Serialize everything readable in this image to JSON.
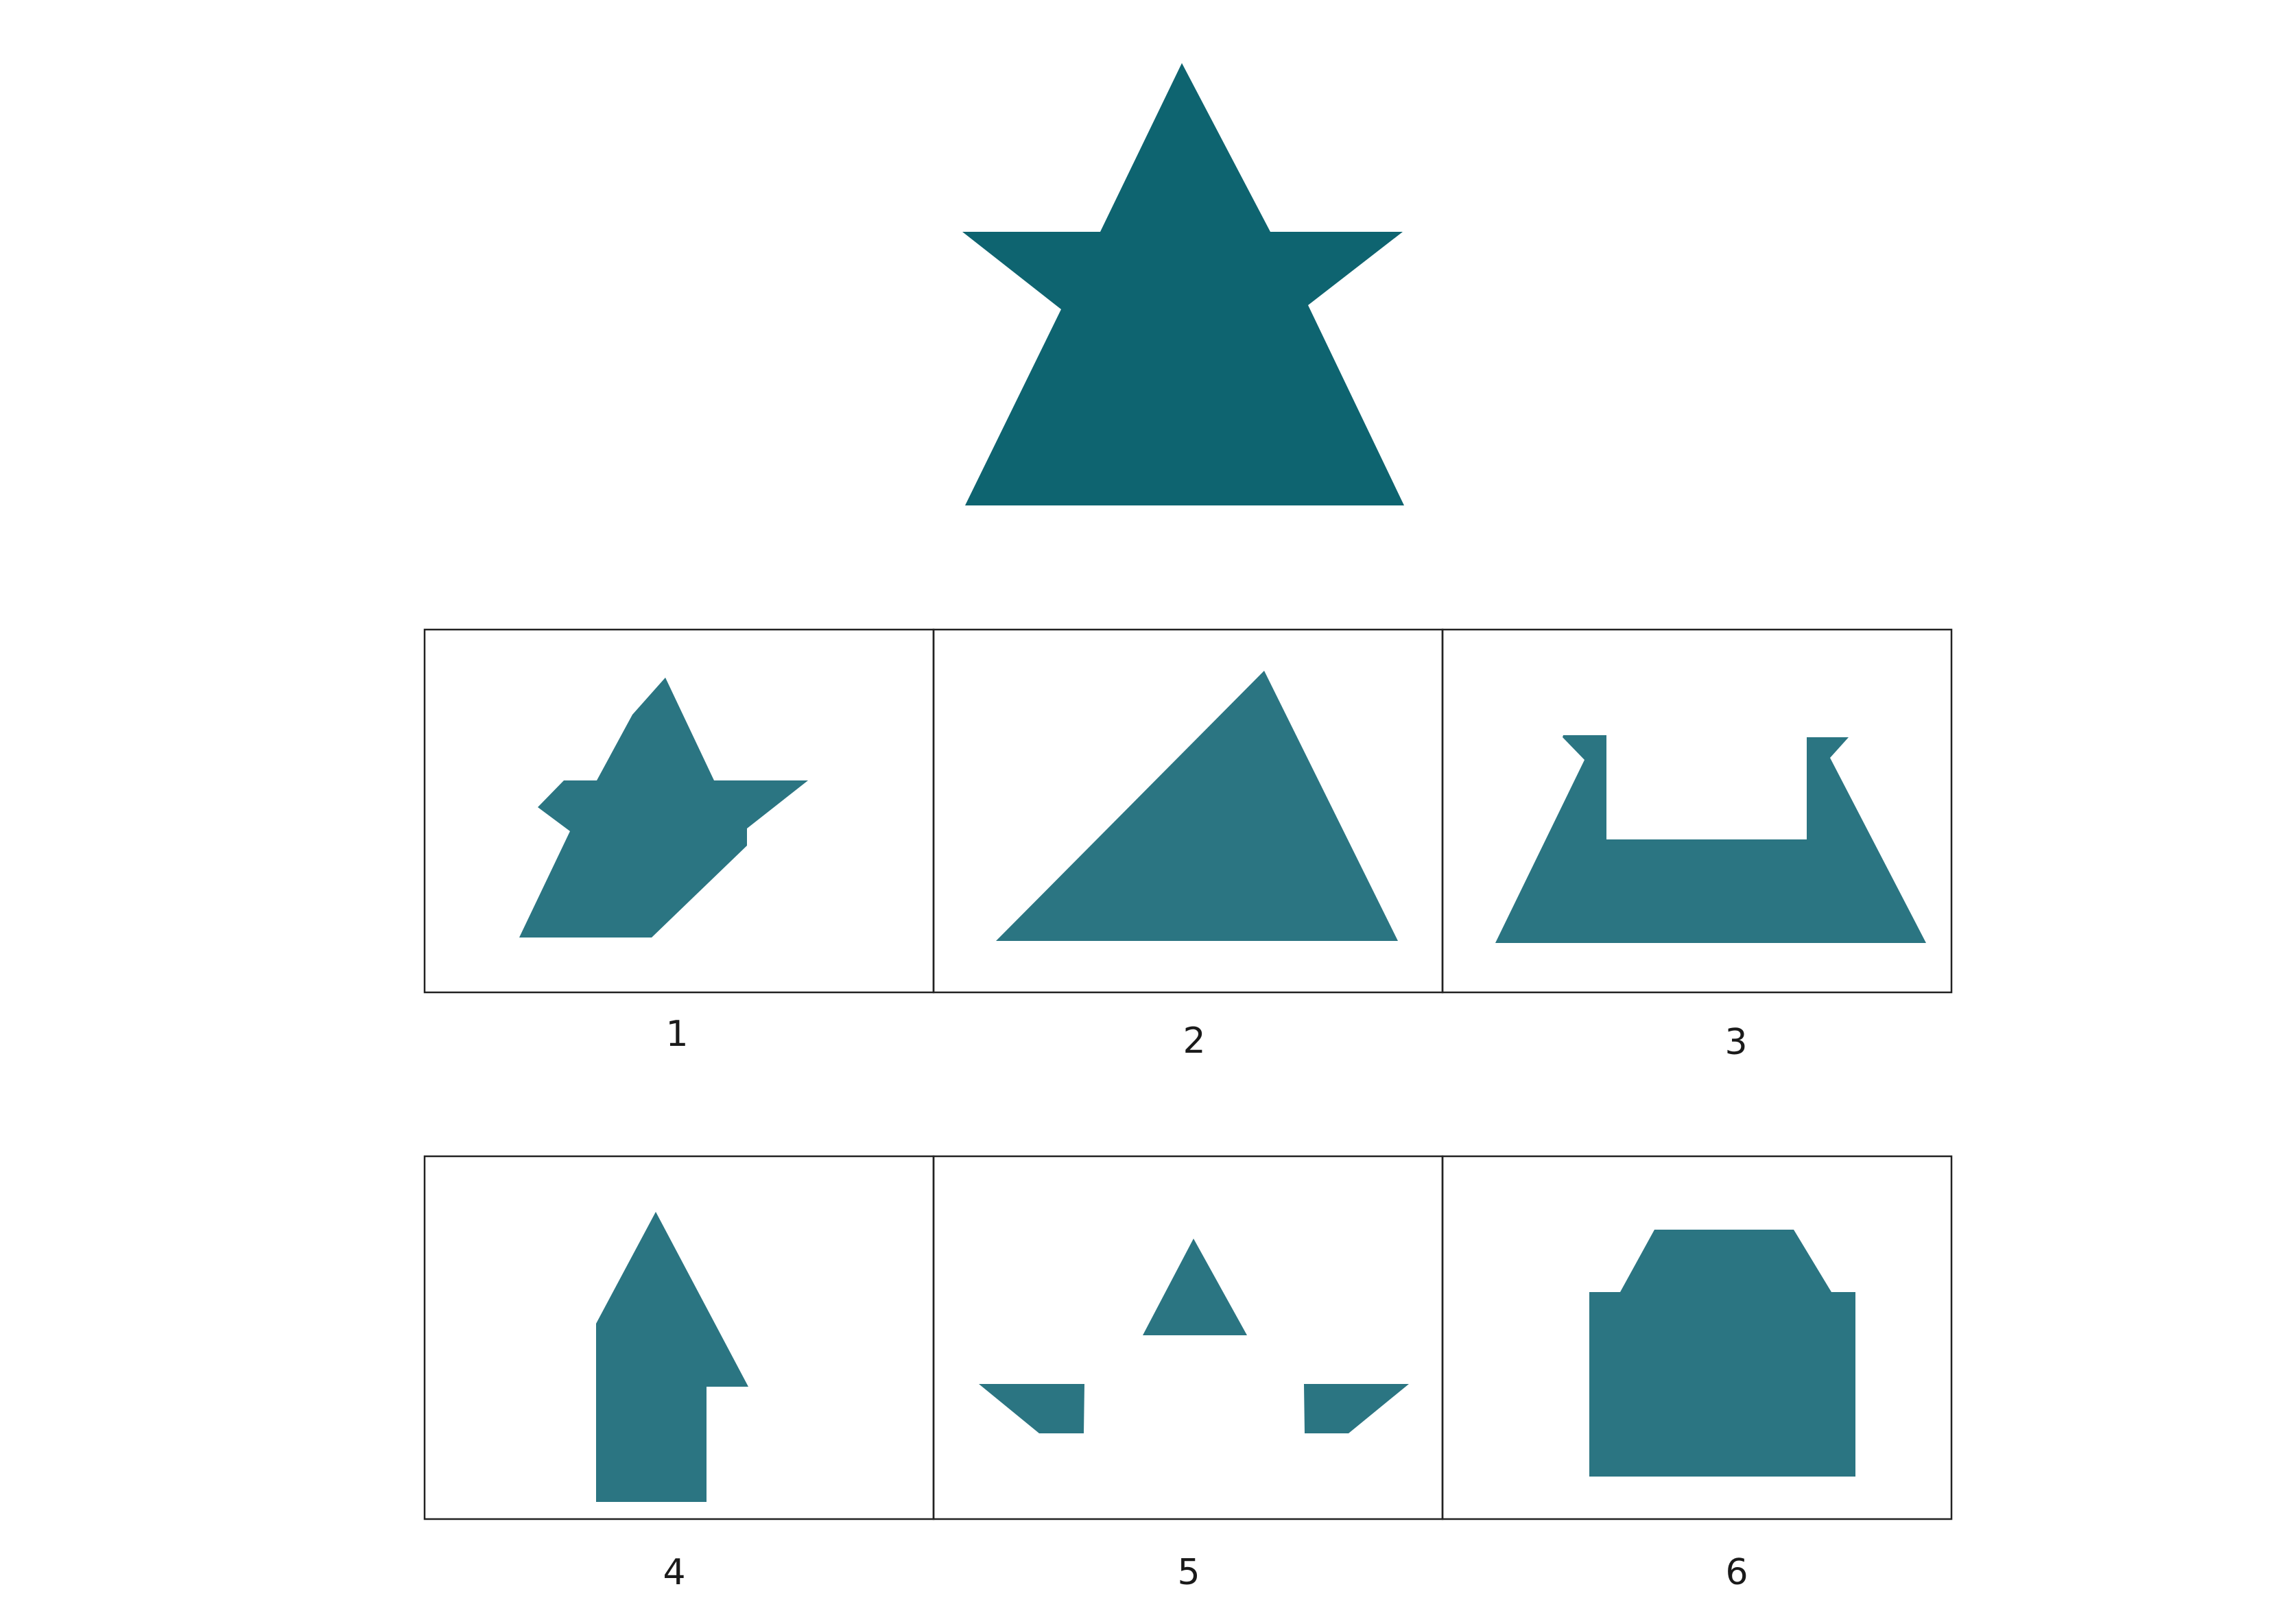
{
  "puzzle": {
    "reference_shape": "star",
    "options": [
      {
        "label": "1",
        "shape": "star-fragment"
      },
      {
        "label": "2",
        "shape": "triangle"
      },
      {
        "label": "3",
        "shape": "notched-trapezoid"
      },
      {
        "label": "4",
        "shape": "arrow-step"
      },
      {
        "label": "5",
        "shape": "scattered-pieces"
      },
      {
        "label": "6",
        "shape": "house-block"
      }
    ]
  },
  "colors": {
    "reference_fill": "#0e6470",
    "option_fill": "#2b7582",
    "border": "#222222",
    "background": "#ffffff"
  }
}
